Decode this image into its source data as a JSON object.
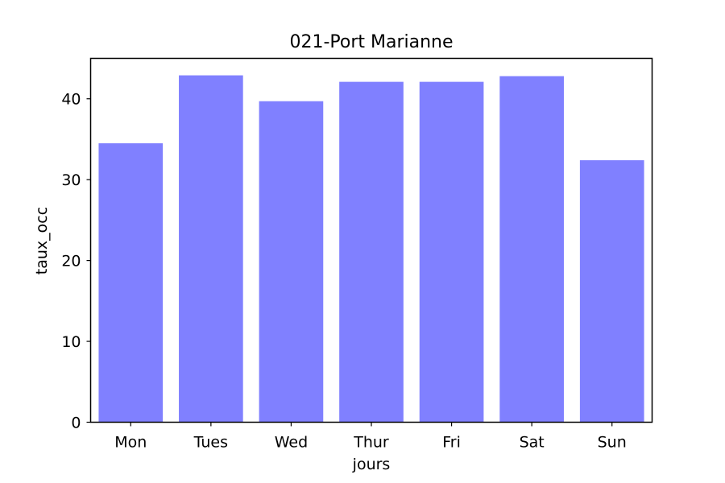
{
  "chart_data": {
    "type": "bar",
    "title": "021-Port Marianne",
    "xlabel": "jours",
    "ylabel": "taux_occ",
    "categories": [
      "Mon",
      "Tues",
      "Wed",
      "Thur",
      "Fri",
      "Sat",
      "Sun"
    ],
    "values": [
      34.5,
      42.9,
      39.7,
      42.1,
      42.1,
      42.8,
      32.4
    ],
    "ylim": [
      0,
      45
    ],
    "yticks": [
      0,
      10,
      20,
      30,
      40
    ],
    "ytick_labels": [
      "0",
      "10",
      "20",
      "30",
      "40"
    ],
    "grid": false,
    "legend": "none",
    "bar_color": "#8080ff",
    "axis_color": "#000000"
  }
}
